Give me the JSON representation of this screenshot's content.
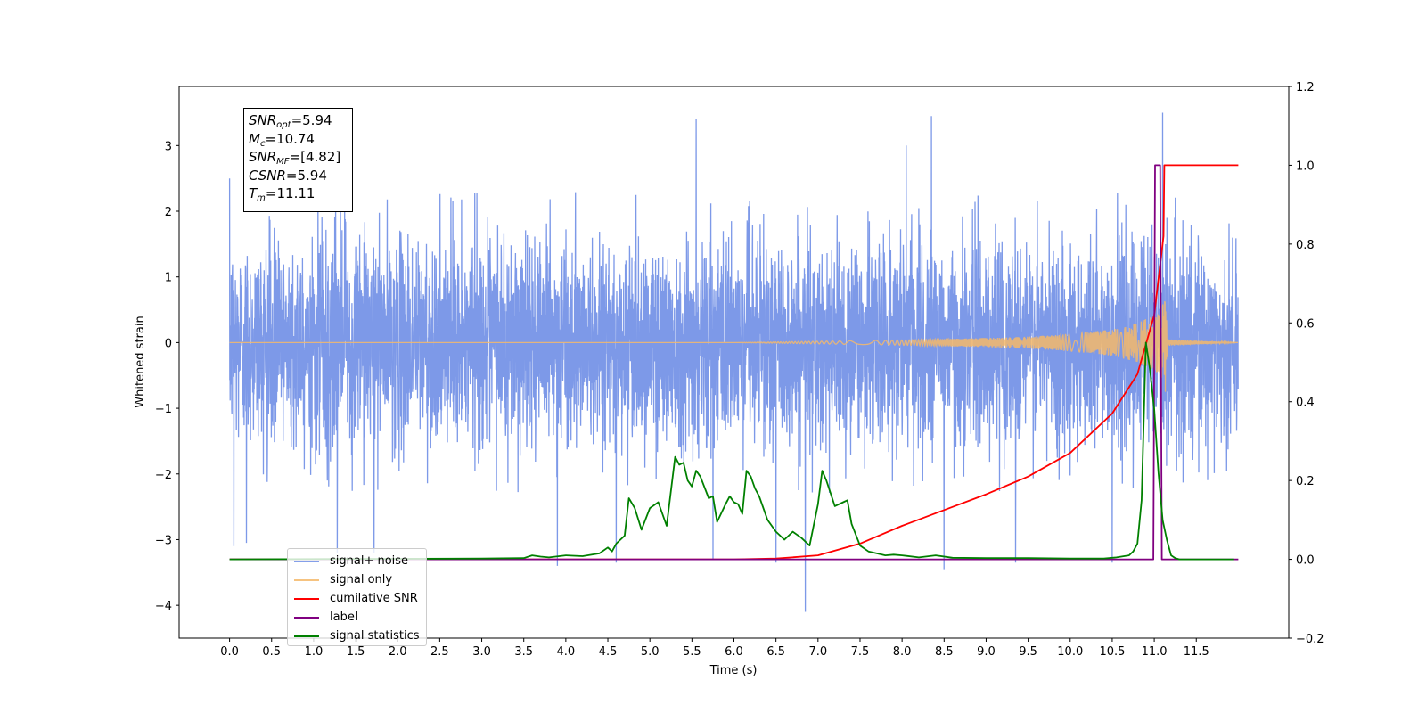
{
  "chart_data": {
    "type": "line",
    "xlabel": "Time (s)",
    "ylabel": "Whitened strain",
    "xlim": [
      -0.6,
      12.6
    ],
    "ylim": [
      -4.5,
      3.9
    ],
    "ylim_right": [
      -0.2,
      1.2
    ],
    "xticks": [
      "0.0",
      "0.5",
      "1.0",
      "1.5",
      "2.0",
      "2.5",
      "3.0",
      "3.5",
      "4.0",
      "4.5",
      "5.0",
      "5.5",
      "6.0",
      "6.5",
      "7.0",
      "7.5",
      "8.0",
      "8.5",
      "9.0",
      "9.5",
      "10.0",
      "10.5",
      "11.0",
      "11.5"
    ],
    "yticks_left": [
      "3",
      "2",
      "1",
      "0",
      "−1",
      "−2",
      "−3",
      "−4"
    ],
    "yticks_right": [
      "1.2",
      "1.0",
      "0.8",
      "0.6",
      "0.4",
      "0.2",
      "0.0",
      "−0.2"
    ],
    "legend_position": "lower-left",
    "series": [
      {
        "name": "signal+ noise",
        "axis": "left",
        "color": "#6f8ee6",
        "description": "whitened strain noise, roughly between -2 and 2.3 with spikes from -4.1 to 3.5, 0 to 12 s",
        "spikes": [
          [
            0.0,
            2.5
          ],
          [
            0.05,
            -3.1
          ],
          [
            0.2,
            -3.05
          ],
          [
            1.28,
            -3.2
          ],
          [
            1.72,
            -3.2
          ],
          [
            3.9,
            -3.4
          ],
          [
            4.6,
            -3.35
          ],
          [
            5.55,
            3.4
          ],
          [
            5.75,
            -3.3
          ],
          [
            6.5,
            -3.35
          ],
          [
            6.85,
            -4.1
          ],
          [
            8.05,
            3.0
          ],
          [
            8.35,
            3.45
          ],
          [
            8.5,
            -3.45
          ],
          [
            9.35,
            -3.35
          ],
          [
            10.5,
            -3.35
          ],
          [
            11.1,
            3.5
          ]
        ]
      },
      {
        "name": "signal only",
        "axis": "left",
        "color": "#f4b86a",
        "description": "chirp waveform growing in amplitude towards merger at about 11.11 s",
        "envelope": [
          [
            0.0,
            0.0
          ],
          [
            6.0,
            0.0
          ],
          [
            7.0,
            0.02
          ],
          [
            8.0,
            0.04
          ],
          [
            9.0,
            0.07
          ],
          [
            9.5,
            0.09
          ],
          [
            10.0,
            0.13
          ],
          [
            10.5,
            0.2
          ],
          [
            10.8,
            0.3
          ],
          [
            11.0,
            0.42
          ],
          [
            11.1,
            0.55
          ],
          [
            11.13,
            0.8
          ],
          [
            11.16,
            0.05
          ],
          [
            12.0,
            0.0
          ]
        ]
      },
      {
        "name": "cumilative SNR",
        "axis": "right",
        "color": "#ff0000",
        "x": [
          0.0,
          6.0,
          6.5,
          7.0,
          7.5,
          8.0,
          8.5,
          9.0,
          9.5,
          10.0,
          10.5,
          10.8,
          11.0,
          11.11,
          11.12,
          12.0
        ],
        "y": [
          0.0,
          0.0,
          0.002,
          0.01,
          0.04,
          0.085,
          0.125,
          0.165,
          0.21,
          0.27,
          0.37,
          0.47,
          0.62,
          0.82,
          1.0,
          1.0
        ]
      },
      {
        "name": "label",
        "axis": "right",
        "color": "#800080",
        "x": [
          0.0,
          10.99,
          11.01,
          11.07,
          11.09,
          12.0
        ],
        "y": [
          0.0,
          0.0,
          1.0,
          1.0,
          0.0,
          0.0
        ]
      },
      {
        "name": "signal statistics",
        "axis": "right",
        "color": "#008000",
        "x": [
          0.0,
          3.0,
          3.5,
          3.6,
          3.7,
          3.8,
          4.0,
          4.2,
          4.4,
          4.5,
          4.55,
          4.6,
          4.7,
          4.75,
          4.82,
          4.9,
          5.0,
          5.1,
          5.2,
          5.3,
          5.35,
          5.4,
          5.45,
          5.5,
          5.55,
          5.6,
          5.7,
          5.75,
          5.8,
          5.9,
          5.95,
          6.0,
          6.05,
          6.1,
          6.15,
          6.2,
          6.25,
          6.3,
          6.4,
          6.5,
          6.6,
          6.7,
          6.8,
          6.9,
          7.0,
          7.05,
          7.1,
          7.2,
          7.3,
          7.35,
          7.4,
          7.5,
          7.6,
          7.7,
          7.8,
          7.9,
          8.0,
          8.2,
          8.4,
          8.6,
          9.0,
          9.5,
          10.0,
          10.4,
          10.55,
          10.7,
          10.75,
          10.8,
          10.85,
          10.9,
          10.95,
          11.0,
          11.05,
          11.1,
          11.15,
          11.2,
          11.25,
          11.3,
          11.4,
          11.95
        ],
        "y": [
          0.0,
          0.002,
          0.003,
          0.01,
          0.007,
          0.005,
          0.01,
          0.008,
          0.015,
          0.03,
          0.02,
          0.04,
          0.06,
          0.155,
          0.13,
          0.075,
          0.13,
          0.145,
          0.085,
          0.26,
          0.24,
          0.245,
          0.2,
          0.185,
          0.225,
          0.21,
          0.155,
          0.16,
          0.095,
          0.14,
          0.16,
          0.145,
          0.14,
          0.115,
          0.225,
          0.21,
          0.18,
          0.16,
          0.1,
          0.07,
          0.05,
          0.07,
          0.055,
          0.035,
          0.14,
          0.225,
          0.2,
          0.135,
          0.145,
          0.15,
          0.09,
          0.035,
          0.02,
          0.015,
          0.01,
          0.012,
          0.01,
          0.005,
          0.01,
          0.004,
          0.003,
          0.003,
          0.002,
          0.002,
          0.005,
          0.01,
          0.02,
          0.04,
          0.15,
          0.55,
          0.48,
          0.38,
          0.22,
          0.1,
          0.05,
          0.01,
          0.003,
          0.0,
          0.0,
          0.0
        ]
      }
    ],
    "annotation": [
      {
        "name": "SNR",
        "sub": "opt",
        "value": "=5.94"
      },
      {
        "name": "M",
        "sub": "c",
        "value": "=10.74"
      },
      {
        "name": "SNR",
        "sub": "MF",
        "value": "=[4.82]"
      },
      {
        "name": "CSNR",
        "sub": "",
        "value": "=5.94"
      },
      {
        "name": "T",
        "sub": "m",
        "value": "=11.11"
      }
    ]
  },
  "legend_items": [
    {
      "label": "signal+ noise",
      "color": "#6f8ee6"
    },
    {
      "label": "signal only",
      "color": "#f4b86a"
    },
    {
      "label": "cumilative SNR",
      "color": "#ff0000"
    },
    {
      "label": "label",
      "color": "#800080"
    },
    {
      "label": "signal statistics",
      "color": "#008000"
    }
  ]
}
